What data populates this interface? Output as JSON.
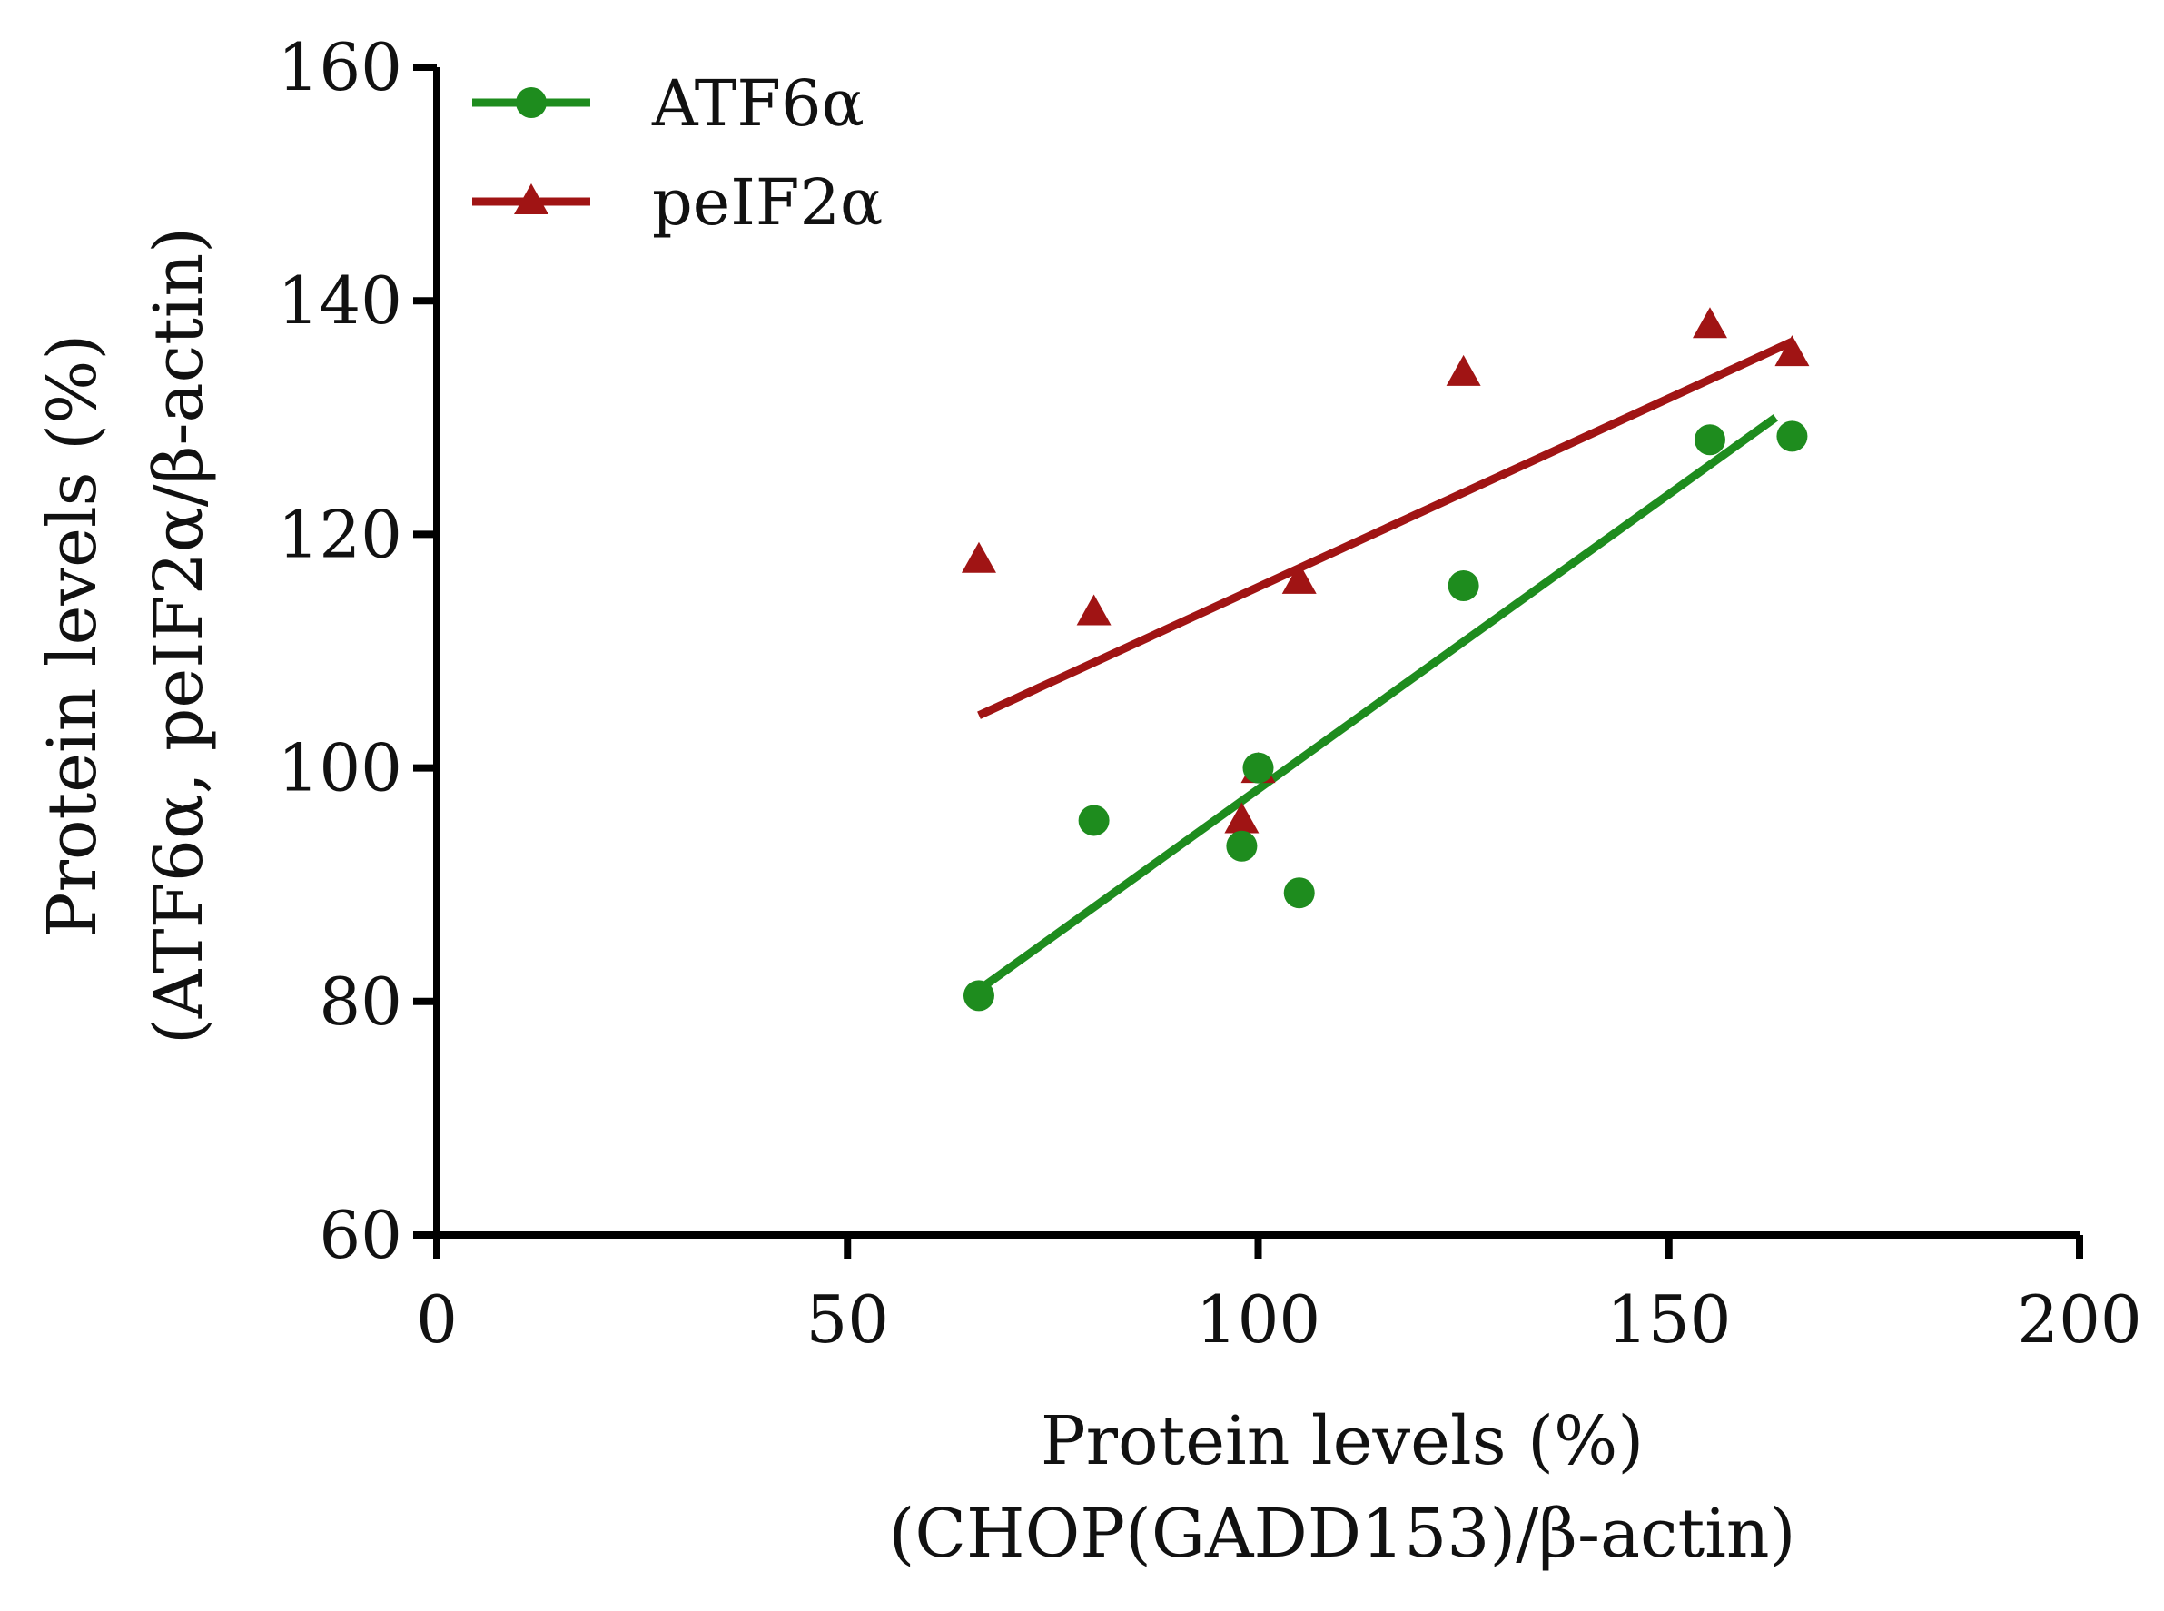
{
  "chart_data": {
    "type": "scatter",
    "xlabel": [
      "Protein levels (%)",
      "(CHOP(GADD153)/β-actin)"
    ],
    "ylabel": [
      "Protein levels (%)",
      "(ATF6α, peIF2α/β-actin)"
    ],
    "xlim": [
      0,
      200
    ],
    "ylim": [
      60,
      160
    ],
    "xticks": [
      0,
      50,
      100,
      150,
      200
    ],
    "yticks": [
      60,
      80,
      100,
      120,
      140,
      160
    ],
    "grid": false,
    "legend_position": "top-left",
    "series": [
      {
        "name": "ATF6α",
        "color": "#1e8c1e",
        "marker": "circle",
        "x": [
          66,
          80,
          98,
          100,
          105,
          125,
          155,
          165
        ],
        "y": [
          80.5,
          95.5,
          93.3,
          100,
          89.3,
          115.6,
          128.1,
          128.4
        ],
        "fit": {
          "x": [
            66,
            163
          ],
          "y": [
            81,
            130
          ]
        }
      },
      {
        "name": "peIF2α",
        "color": "#a01414",
        "marker": "triangle",
        "x": [
          66,
          80,
          98,
          100,
          105,
          125,
          155,
          165
        ],
        "y": [
          117.8,
          113.3,
          95.5,
          99.8,
          116,
          133.8,
          137.9,
          135.5
        ],
        "fit": {
          "x": [
            66,
            165
          ],
          "y": [
            104.5,
            136.5
          ]
        }
      }
    ]
  }
}
